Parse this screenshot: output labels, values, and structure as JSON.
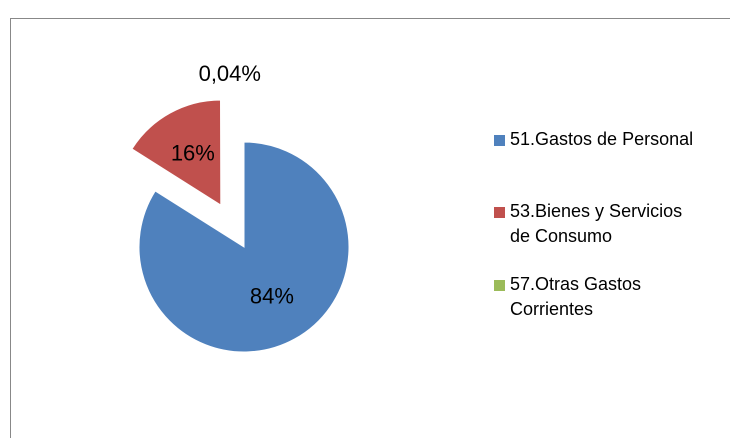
{
  "chart_data": {
    "type": "pie",
    "categories": [
      "51.Gastos de Personal",
      "53.Bienes y Servicios de Consumo",
      "57.Otras Gastos Corrientes"
    ],
    "values": [
      84,
      16,
      0.04
    ],
    "value_labels": [
      "84%",
      "16%",
      "0,04%"
    ],
    "colors": [
      "#4f81bd",
      "#c0504d",
      "#9bbb59"
    ],
    "legend": "right"
  }
}
